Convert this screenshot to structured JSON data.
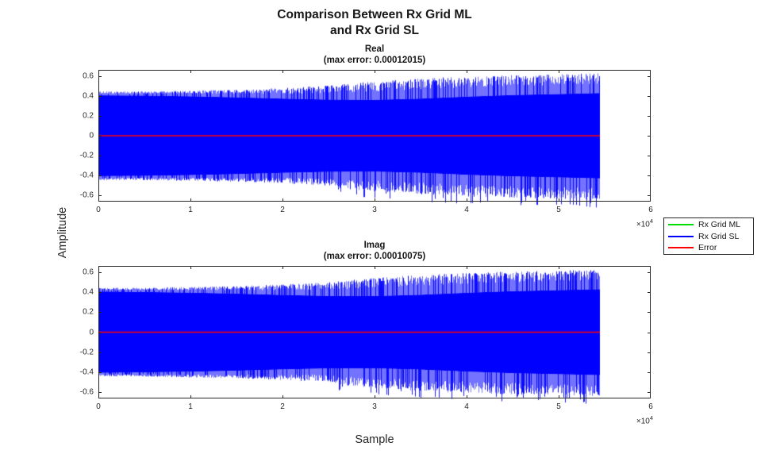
{
  "figure": {
    "title_line1": "Comparison Between Rx Grid ML",
    "title_line2": "and Rx Grid SL",
    "xlabel": "Sample",
    "ylabel": "Amplitude",
    "background_color": "#ffffff",
    "text_color": "#262626"
  },
  "legend": {
    "items": [
      {
        "label": "Rx Grid ML",
        "color": "#00dd00"
      },
      {
        "label": "Rx Grid SL",
        "color": "#0000ff"
      },
      {
        "label": "Error",
        "color": "#ff0000"
      }
    ]
  },
  "chart_data": [
    {
      "type": "line",
      "title": "Real",
      "subtitle": "(max error: 0.00012015)",
      "max_error": 0.00012015,
      "xlim": [
        0,
        60000
      ],
      "ylim": [
        -0.66,
        0.66
      ],
      "xtick_values": [
        0,
        10000,
        20000,
        30000,
        40000,
        50000,
        60000
      ],
      "xtick_labels": [
        "0",
        "1",
        "2",
        "3",
        "4",
        "5",
        "6"
      ],
      "x_multiplier_base": "×10",
      "x_multiplier_exp": "4",
      "ytick_values": [
        0.6,
        0.4,
        0.2,
        0,
        -0.2,
        -0.4,
        -0.6
      ],
      "ytick_labels": [
        "0.6",
        "0.4",
        "0.2",
        "0",
        "-0.2",
        "-0.4",
        "-0.6"
      ],
      "series": [
        {
          "name": "Rx Grid ML",
          "color": "#00dd00",
          "visible_in_plot": false
        },
        {
          "name": "Rx Grid SL",
          "color": "#0000ff",
          "visible_in_plot": true
        },
        {
          "name": "Error",
          "color": "#ff0000",
          "approx_value": 0
        }
      ],
      "signal": {
        "x_end": 54500,
        "envelope_x": [
          0,
          5000,
          10000,
          15000,
          20000,
          25000,
          30000,
          35000,
          40000,
          45000,
          50000,
          54500
        ],
        "envelope_y": [
          0.445,
          0.445,
          0.452,
          0.462,
          0.478,
          0.503,
          0.545,
          0.575,
          0.595,
          0.608,
          0.615,
          0.628
        ],
        "core_y": [
          0.405,
          0.402,
          0.395,
          0.385,
          0.372,
          0.362,
          0.36,
          0.372,
          0.392,
          0.408,
          0.418,
          0.428
        ],
        "neg_overflow_from": 26000
      },
      "seed": 13371
    },
    {
      "type": "line",
      "title": "Imag",
      "subtitle": "(max error: 0.00010075)",
      "max_error": 0.00010075,
      "xlim": [
        0,
        60000
      ],
      "ylim": [
        -0.66,
        0.66
      ],
      "xtick_values": [
        0,
        10000,
        20000,
        30000,
        40000,
        50000,
        60000
      ],
      "xtick_labels": [
        "0",
        "1",
        "2",
        "3",
        "4",
        "5",
        "6"
      ],
      "x_multiplier_base": "×10",
      "x_multiplier_exp": "4",
      "ytick_values": [
        0.6,
        0.4,
        0.2,
        0,
        -0.2,
        -0.4,
        -0.6
      ],
      "ytick_labels": [
        "0.6",
        "0.4",
        "0.2",
        "0",
        "-0.2",
        "-0.4",
        "-0.6"
      ],
      "series": [
        {
          "name": "Rx Grid ML",
          "color": "#00dd00",
          "visible_in_plot": false
        },
        {
          "name": "Rx Grid SL",
          "color": "#0000ff",
          "visible_in_plot": true
        },
        {
          "name": "Error",
          "color": "#ff0000",
          "approx_value": 0
        }
      ],
      "signal": {
        "x_end": 54500,
        "envelope_x": [
          0,
          5000,
          10000,
          15000,
          20000,
          25000,
          30000,
          35000,
          40000,
          45000,
          50000,
          54500
        ],
        "envelope_y": [
          0.44,
          0.443,
          0.45,
          0.46,
          0.476,
          0.5,
          0.542,
          0.572,
          0.592,
          0.606,
          0.613,
          0.625
        ],
        "core_y": [
          0.405,
          0.4,
          0.394,
          0.384,
          0.371,
          0.361,
          0.36,
          0.373,
          0.393,
          0.409,
          0.419,
          0.428
        ],
        "neg_overflow_from": 26000
      },
      "seed": 90210
    }
  ]
}
